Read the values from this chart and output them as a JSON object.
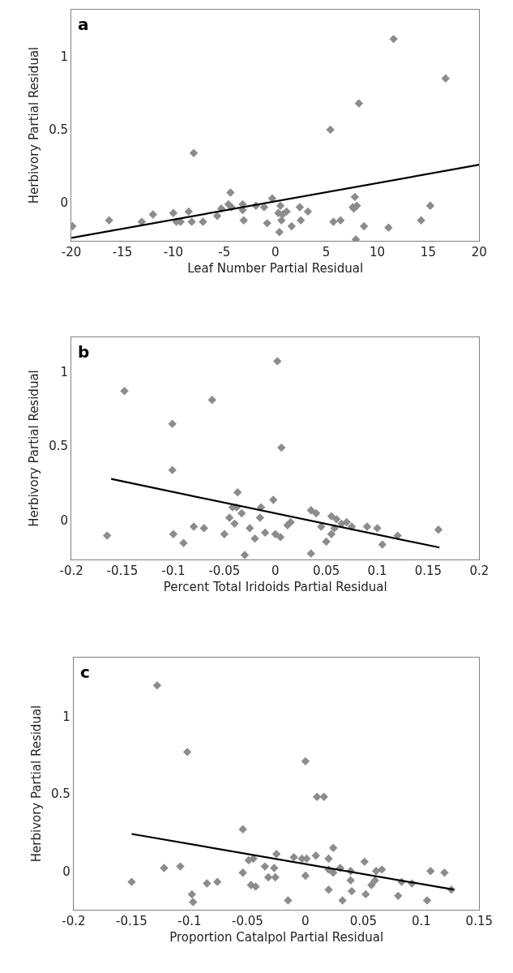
{
  "chart_data": [
    {
      "type": "scatter",
      "title": "a",
      "xlabel": "Leaf Number Partial Residual",
      "ylabel": "Herbivory Partial Residual",
      "xlim": [
        -20,
        20
      ],
      "ylim": [
        -0.26,
        1.32
      ],
      "xticks": [
        -20,
        -15,
        -10,
        -5,
        0,
        5,
        10,
        15,
        20
      ],
      "yticks": [
        0,
        0.5,
        1
      ],
      "marker": "diamond",
      "series": [
        {
          "color": "#8c8c8c",
          "x": [
            -19.9,
            -16.3,
            -13.1,
            -12.0,
            -10.0,
            -9.7,
            -9.3,
            -8.5,
            -8.2,
            -8.0,
            -7.1,
            -5.7,
            -5.3,
            -4.6,
            -4.4,
            -4.3,
            -3.2,
            -3.2,
            -3.1,
            -1.9,
            -1.1,
            -0.8,
            -0.3,
            0.5,
            0.3,
            0.7,
            0.6,
            0.4,
            1.1,
            1.6,
            2.4,
            2.5,
            3.2,
            5.4,
            5.7,
            6.4,
            7.6,
            7.7,
            8.0,
            7.8,
            8.2,
            7.9,
            8.7,
            11.1,
            11.6,
            14.3,
            15.2,
            16.7
          ],
          "values": [
            -0.16,
            -0.12,
            -0.13,
            -0.08,
            -0.07,
            -0.13,
            -0.13,
            -0.06,
            -0.13,
            0.34,
            -0.13,
            -0.09,
            -0.04,
            -0.01,
            0.07,
            -0.03,
            -0.01,
            -0.05,
            -0.12,
            -0.02,
            -0.03,
            -0.14,
            0.03,
            -0.02,
            -0.07,
            -0.08,
            -0.12,
            -0.2,
            -0.06,
            -0.16,
            -0.03,
            -0.12,
            -0.06,
            0.5,
            -0.13,
            -0.12,
            -0.03,
            -0.04,
            -0.02,
            0.04,
            0.68,
            -0.25,
            -0.16,
            -0.17,
            1.12,
            -0.12,
            -0.02,
            0.85
          ]
        },
        {
          "type": "line",
          "color": "#000000",
          "marker": "none",
          "line_style": "solid",
          "x": [
            -20,
            20
          ],
          "values": [
            -0.24,
            0.26
          ]
        }
      ]
    },
    {
      "type": "scatter",
      "title": "b",
      "xlabel": "Percent Total Iridoids Partial Residual",
      "ylabel": "Herbivory Partial Residual",
      "xlim": [
        -0.2,
        0.2
      ],
      "ylim": [
        -0.26,
        1.23
      ],
      "xticks": [
        -0.2,
        -0.15,
        -0.1,
        -0.05,
        0,
        0.05,
        0.1,
        0.15,
        0.2
      ],
      "yticks": [
        0,
        0.5,
        1
      ],
      "marker": "diamond",
      "series": [
        {
          "color": "#8c8c8c",
          "x": [
            -0.148,
            -0.101,
            -0.101,
            -0.062,
            0.002,
            0.006,
            -0.037,
            -0.002,
            -0.014,
            -0.042,
            -0.038,
            -0.033,
            0.04,
            -0.165,
            -0.1,
            -0.09,
            -0.08,
            -0.07,
            -0.05,
            -0.045,
            -0.04,
            -0.03,
            -0.025,
            -0.02,
            -0.015,
            -0.01,
            0.0,
            0.005,
            0.012,
            0.015,
            0.035,
            0.035,
            0.045,
            0.05,
            0.055,
            0.055,
            0.058,
            0.06,
            0.065,
            0.07,
            0.075,
            0.09,
            0.1,
            0.105,
            0.12,
            0.16
          ],
          "values": [
            0.87,
            0.65,
            0.34,
            0.81,
            1.07,
            0.49,
            0.19,
            0.14,
            0.09,
            0.09,
            0.09,
            0.05,
            0.05,
            -0.1,
            -0.09,
            -0.15,
            -0.04,
            -0.05,
            -0.09,
            0.02,
            -0.02,
            -0.23,
            -0.05,
            -0.12,
            0.02,
            -0.08,
            -0.09,
            -0.11,
            -0.03,
            -0.01,
            0.07,
            -0.22,
            -0.04,
            -0.14,
            0.03,
            -0.09,
            -0.05,
            0.01,
            -0.02,
            -0.01,
            -0.04,
            -0.04,
            -0.05,
            -0.16,
            -0.1,
            -0.06
          ]
        },
        {
          "type": "line",
          "color": "#000000",
          "marker": "none",
          "line_style": "solid",
          "x": [
            -0.161,
            0.161
          ],
          "values": [
            0.28,
            -0.18
          ]
        }
      ]
    },
    {
      "type": "scatter",
      "title": "c",
      "xlabel": "Proportion Catalpol Partial Residual",
      "ylabel": "Herbivory Partial Residual",
      "xlim": [
        -0.2,
        0.15
      ],
      "ylim": [
        -0.25,
        1.38
      ],
      "xticks": [
        -0.2,
        -0.15,
        -0.1,
        -0.05,
        0,
        0.05,
        0.1,
        0.15
      ],
      "yticks": [
        0,
        0.5,
        1
      ],
      "marker": "diamond",
      "series": [
        {
          "color": "#8c8c8c",
          "x": [
            -0.128,
            -0.102,
            0.0,
            0.01,
            0.016,
            -0.054,
            -0.15,
            -0.122,
            -0.108,
            -0.076,
            -0.054,
            -0.049,
            -0.045,
            -0.047,
            -0.035,
            -0.027,
            -0.032,
            -0.026,
            -0.025,
            -0.01,
            -0.003,
            0.001,
            0.0,
            0.009,
            0.02,
            0.02,
            0.024,
            0.024,
            0.03,
            0.039,
            0.039,
            0.051,
            0.06,
            0.061,
            0.066,
            0.057,
            0.083,
            0.092,
            0.108,
            0.12,
            -0.098,
            -0.097,
            -0.085,
            -0.043,
            -0.015,
            0.02,
            0.032,
            0.04,
            0.052,
            0.08,
            0.105,
            0.126
          ],
          "values": [
            1.2,
            0.77,
            0.71,
            0.48,
            0.48,
            0.27,
            -0.07,
            0.02,
            0.03,
            -0.07,
            -0.01,
            0.07,
            0.08,
            -0.09,
            0.03,
            0.02,
            -0.04,
            -0.04,
            0.11,
            0.09,
            0.08,
            0.08,
            -0.03,
            0.1,
            0.08,
            0.01,
            0.15,
            -0.01,
            0.02,
            0.0,
            -0.06,
            0.06,
            -0.06,
            0.0,
            0.01,
            -0.09,
            -0.07,
            -0.08,
            0.0,
            -0.01,
            -0.15,
            -0.2,
            -0.08,
            -0.1,
            -0.19,
            -0.12,
            -0.19,
            -0.13,
            -0.15,
            -0.16,
            -0.19,
            -0.12
          ]
        },
        {
          "type": "line",
          "color": "#000000",
          "marker": "none",
          "line_style": "solid",
          "x": [
            -0.15,
            0.128
          ],
          "values": [
            0.24,
            -0.12
          ]
        }
      ]
    }
  ]
}
